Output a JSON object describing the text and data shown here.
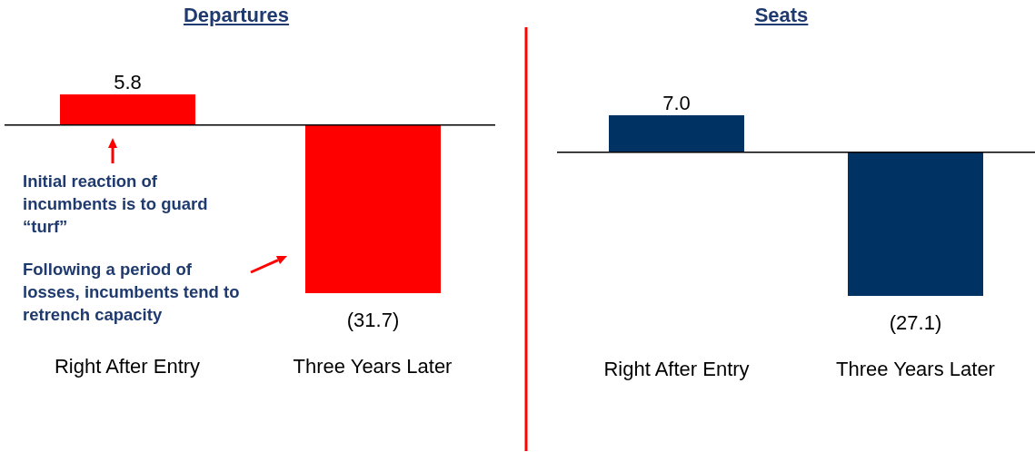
{
  "chart_data": [
    {
      "type": "bar",
      "title": "Departures",
      "categories": [
        "Right After Entry",
        "Three Years Later"
      ],
      "values": [
        5.8,
        -31.7
      ],
      "color": "#ff0000",
      "value_labels": [
        "5.8",
        "(31.7)"
      ],
      "annotations": [
        "Initial reaction of incumbents is to guard “turf”",
        "Following a period of losses, incumbents tend to retrench capacity"
      ]
    },
    {
      "type": "bar",
      "title": "Seats",
      "categories": [
        "Right After Entry",
        "Three Years Later"
      ],
      "values": [
        7.0,
        -27.1
      ],
      "color": "#003263",
      "value_labels": [
        "7.0",
        "(27.1)"
      ]
    }
  ]
}
